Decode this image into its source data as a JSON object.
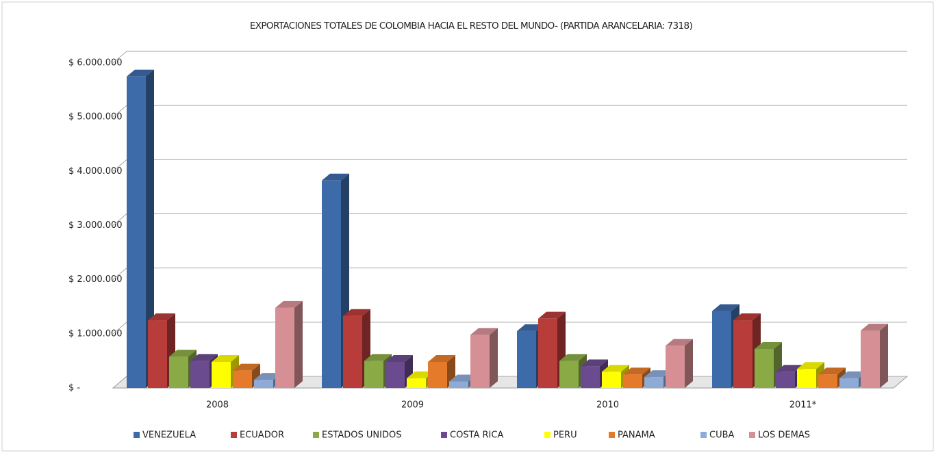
{
  "chart_data": {
    "type": "bar3d",
    "title": "EXPORTACIONES TOTALES DE COLOMBIA HACIA EL RESTO DEL MUNDO- (PARTIDA ARANCELARIA: 7318)",
    "categories": [
      "2008",
      "2009",
      "2010",
      "2011*"
    ],
    "series": [
      {
        "name": "VENEZUELA",
        "color": "#3d6aa8",
        "values": [
          5750000,
          3830000,
          1050000,
          1420000
        ]
      },
      {
        "name": "ECUADOR",
        "color": "#b83c3a",
        "values": [
          1250000,
          1330000,
          1280000,
          1250000
        ]
      },
      {
        "name": "ESTADOS UNIDOS",
        "color": "#8aaa45",
        "values": [
          580000,
          500000,
          500000,
          720000
        ]
      },
      {
        "name": "COSTA RICA",
        "color": "#6b4b8f",
        "values": [
          500000,
          480000,
          400000,
          300000
        ]
      },
      {
        "name": "PERU",
        "color": "#ffff00",
        "values": [
          480000,
          180000,
          300000,
          350000
        ]
      },
      {
        "name": "PANAMA",
        "color": "#e57b2a",
        "values": [
          320000,
          480000,
          250000,
          250000
        ]
      },
      {
        "name": "CUBA",
        "color": "#8eabd8",
        "values": [
          150000,
          120000,
          200000,
          180000
        ]
      },
      {
        "name": "LOS DEMAS",
        "color": "#d69095",
        "values": [
          1480000,
          980000,
          780000,
          1060000
        ]
      }
    ],
    "ylim": [
      0,
      6000000
    ],
    "yticks": [
      {
        "value": 0,
        "label": "$ -"
      },
      {
        "value": 1000000,
        "label": "$ 1.000.000"
      },
      {
        "value": 2000000,
        "label": "$ 2.000.000"
      },
      {
        "value": 3000000,
        "label": "$ 3.000.000"
      },
      {
        "value": 4000000,
        "label": "$ 4.000.000"
      },
      {
        "value": 5000000,
        "label": "$ 5.000.000"
      },
      {
        "value": 6000000,
        "label": "$ 6.000.000"
      }
    ],
    "grid": true,
    "legend": "bottom"
  }
}
